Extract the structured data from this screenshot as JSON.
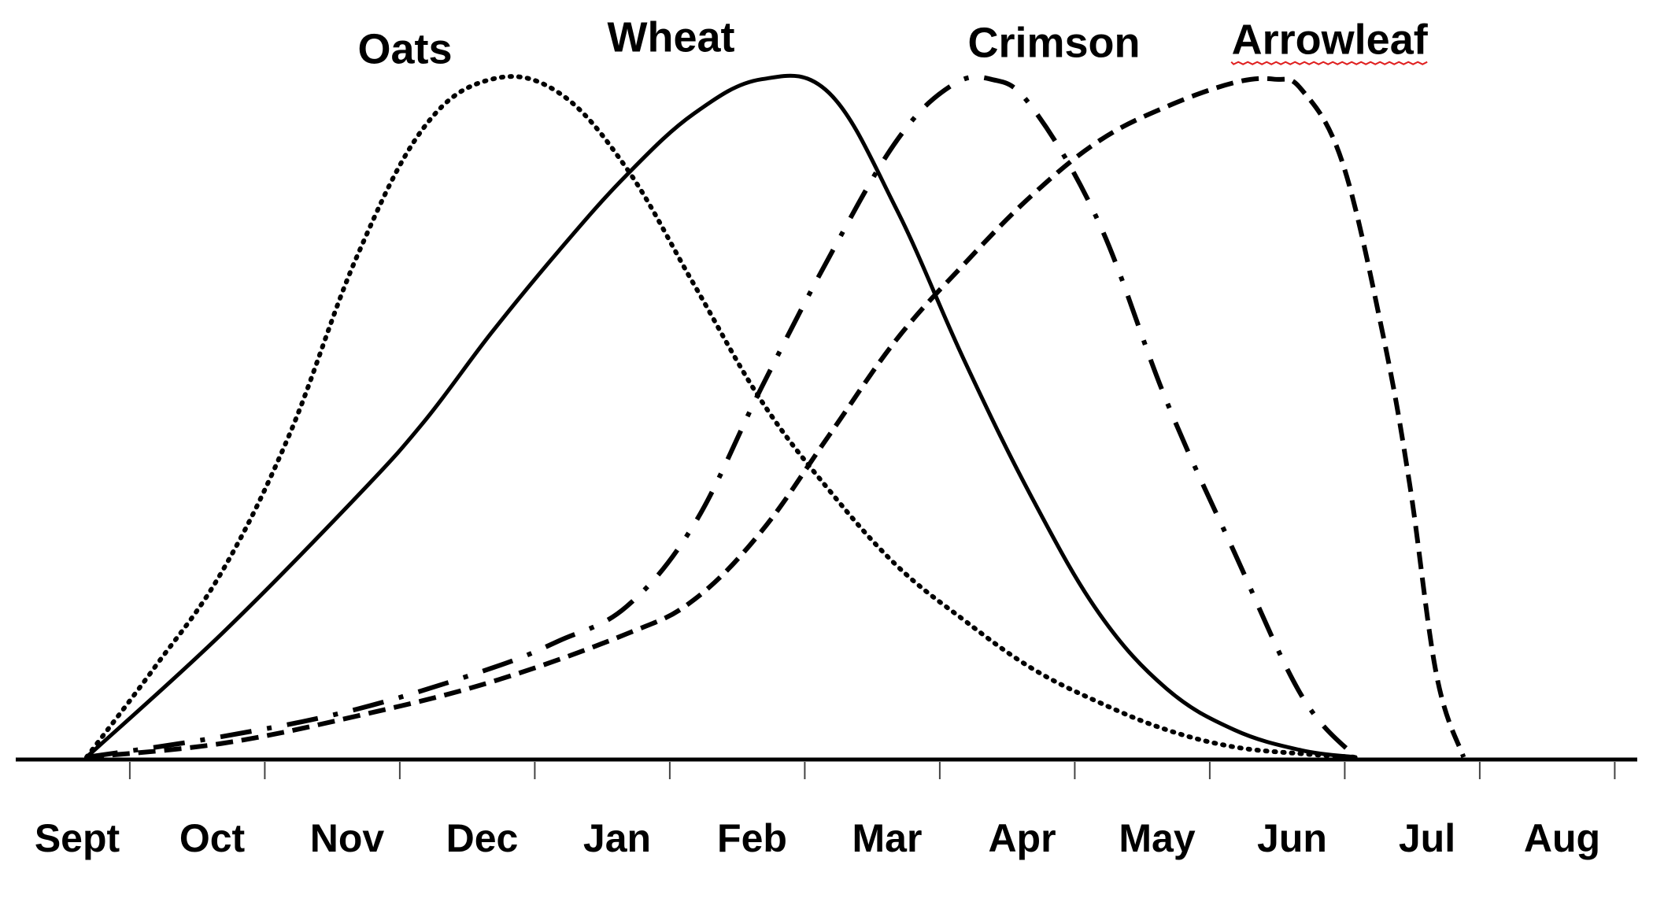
{
  "chart_data": {
    "type": "line",
    "title": "",
    "xlabel": "",
    "ylabel": "",
    "categories": [
      "Sept",
      "Oct",
      "Nov",
      "Dec",
      "Jan",
      "Feb",
      "Mar",
      "Apr",
      "May",
      "Jun",
      "Jul",
      "Aug"
    ],
    "ylim": [
      0,
      100
    ],
    "grid": false,
    "legend": "inline labels above peaks",
    "series": [
      {
        "name": "Oats",
        "style": "dotted",
        "color": "#000000",
        "points": [
          [
            0,
            0
          ],
          [
            0.5,
            13
          ],
          [
            1,
            27
          ],
          [
            1.5,
            47
          ],
          [
            2,
            73
          ],
          [
            2.5,
            92
          ],
          [
            3,
            99
          ],
          [
            3.5,
            97
          ],
          [
            4,
            86
          ],
          [
            4.5,
            69
          ],
          [
            5,
            52
          ],
          [
            5.5,
            39
          ],
          [
            6,
            28
          ],
          [
            6.5,
            20
          ],
          [
            7,
            13
          ],
          [
            7.5,
            8
          ],
          [
            8,
            4
          ],
          [
            8.5,
            1.5
          ],
          [
            9,
            0.5
          ],
          [
            9.4,
            0
          ]
        ]
      },
      {
        "name": "Wheat",
        "style": "solid",
        "color": "#000000",
        "points": [
          [
            0,
            0
          ],
          [
            1,
            18
          ],
          [
            2,
            38
          ],
          [
            2.5,
            49
          ],
          [
            3,
            62
          ],
          [
            3.5,
            74
          ],
          [
            4,
            85
          ],
          [
            4.5,
            94
          ],
          [
            5,
            99
          ],
          [
            5.5,
            97
          ],
          [
            6,
            80
          ],
          [
            6.5,
            58
          ],
          [
            7,
            38
          ],
          [
            7.5,
            21
          ],
          [
            8,
            10
          ],
          [
            8.5,
            4
          ],
          [
            9,
            1
          ],
          [
            9.4,
            0
          ]
        ]
      },
      {
        "name": "Crimson",
        "style": "dash-dot",
        "color": "#000000",
        "points": [
          [
            0,
            0
          ],
          [
            1,
            3
          ],
          [
            2,
            7
          ],
          [
            3,
            13
          ],
          [
            3.5,
            17
          ],
          [
            4,
            22
          ],
          [
            4.5,
            34
          ],
          [
            5,
            54
          ],
          [
            5.5,
            73
          ],
          [
            6,
            90
          ],
          [
            6.4,
            98
          ],
          [
            6.7,
            99
          ],
          [
            7,
            95
          ],
          [
            7.5,
            78
          ],
          [
            8,
            52
          ],
          [
            8.5,
            30
          ],
          [
            9,
            9
          ],
          [
            9.4,
            0
          ]
        ]
      },
      {
        "name": "Arrowleaf",
        "style": "dashed",
        "color": "#000000",
        "points": [
          [
            0,
            0
          ],
          [
            1,
            2
          ],
          [
            2,
            6
          ],
          [
            3,
            11
          ],
          [
            4,
            18
          ],
          [
            4.5,
            23
          ],
          [
            5,
            33
          ],
          [
            5.5,
            47
          ],
          [
            6,
            61
          ],
          [
            6.5,
            72
          ],
          [
            7,
            82
          ],
          [
            7.5,
            90
          ],
          [
            8,
            95
          ],
          [
            8.5,
            98.5
          ],
          [
            8.8,
            99
          ],
          [
            9,
            97.5
          ],
          [
            9.3,
            87
          ],
          [
            9.6,
            62
          ],
          [
            9.8,
            40
          ],
          [
            10,
            12
          ],
          [
            10.2,
            0
          ]
        ]
      }
    ]
  }
}
